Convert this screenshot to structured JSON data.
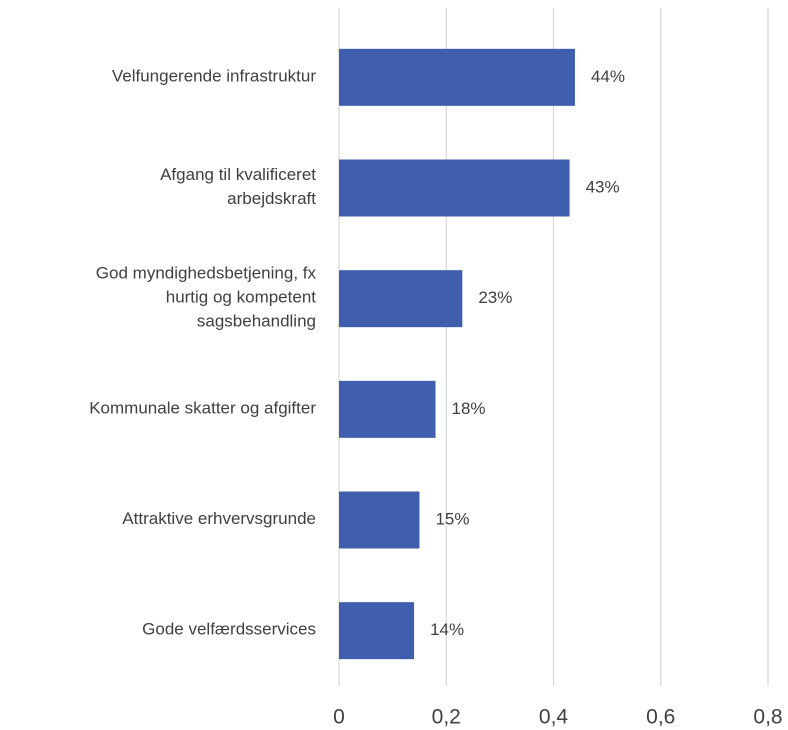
{
  "chart_data": {
    "type": "bar",
    "orientation": "horizontal",
    "categories": [
      "Velfungerende infrastruktur",
      "Afgang til kvalificeret\narbejdskraft",
      "God myndighedsbetjening, fx\nhurtig og kompetent\nsagsbehandling",
      "Kommunale skatter og afgifter",
      "Attraktive erhvervsgrunde",
      "Gode velfærdsservices"
    ],
    "values": [
      0.44,
      0.43,
      0.23,
      0.18,
      0.15,
      0.14
    ],
    "value_labels": [
      "44%",
      "43%",
      "23%",
      "18%",
      "15%",
      "14%"
    ],
    "color": "#3f5fae",
    "xlim": [
      0,
      0.8
    ],
    "xticks": [
      0,
      {
        "value": 0.2,
        "label": "0,2"
      },
      {
        "value": 0.4,
        "label": "0,4"
      },
      {
        "value": 0.6,
        "label": "0,6"
      },
      {
        "value": 0.8,
        "label": "0,8"
      }
    ],
    "grid": true
  }
}
